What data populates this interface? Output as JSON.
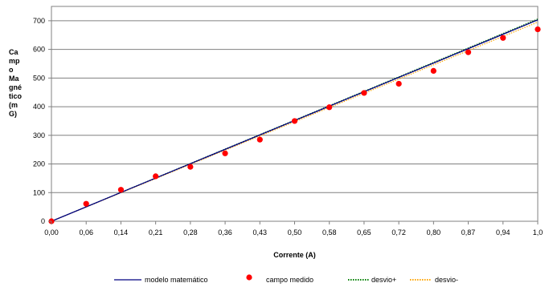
{
  "chart_data": {
    "type": "line",
    "title": "",
    "xlabel": "Corrente (A)",
    "ylabel_lines": [
      "Ca",
      "mp",
      "o",
      "Ma",
      "gné",
      "tico",
      "(m",
      "G)"
    ],
    "x_tick_labels": [
      "0,00",
      "0,06",
      "0,14",
      "0,21",
      "0,28",
      "0,36",
      "0,43",
      "0,50",
      "0,58",
      "0,65",
      "0,72",
      "0,80",
      "0,87",
      "0,94",
      "1,0"
    ],
    "xlim": [
      0,
      1.0
    ],
    "ylim": [
      0,
      750
    ],
    "y_ticks": [
      0,
      100,
      200,
      300,
      400,
      500,
      600,
      700
    ],
    "grid": "horizontal",
    "legend_position": "bottom",
    "series": [
      {
        "name": "modelo matemático",
        "kind": "line",
        "color": "#000080",
        "style": "solid",
        "x": [
          0,
          1.0
        ],
        "y": [
          0,
          703
        ]
      },
      {
        "name": "campo medido",
        "kind": "scatter",
        "color": "#ff0000",
        "x": [
          0.0,
          0.0714,
          0.1429,
          0.2143,
          0.2857,
          0.3571,
          0.4286,
          0.5,
          0.5714,
          0.6429,
          0.7143,
          0.7857,
          0.8571,
          0.9286,
          1.0
        ],
        "y": [
          0,
          61,
          110,
          157,
          190,
          237,
          285,
          350,
          398,
          448,
          480,
          525,
          590,
          640,
          670
        ]
      },
      {
        "name": "desvio+",
        "kind": "line",
        "color": "#008000",
        "style": "dotted",
        "x": [
          0,
          1.0
        ],
        "y": [
          0,
          706
        ]
      },
      {
        "name": "desvio-",
        "kind": "line",
        "color": "#ffa500",
        "style": "dotted",
        "x": [
          0,
          1.0
        ],
        "y": [
          0,
          695
        ]
      }
    ]
  }
}
